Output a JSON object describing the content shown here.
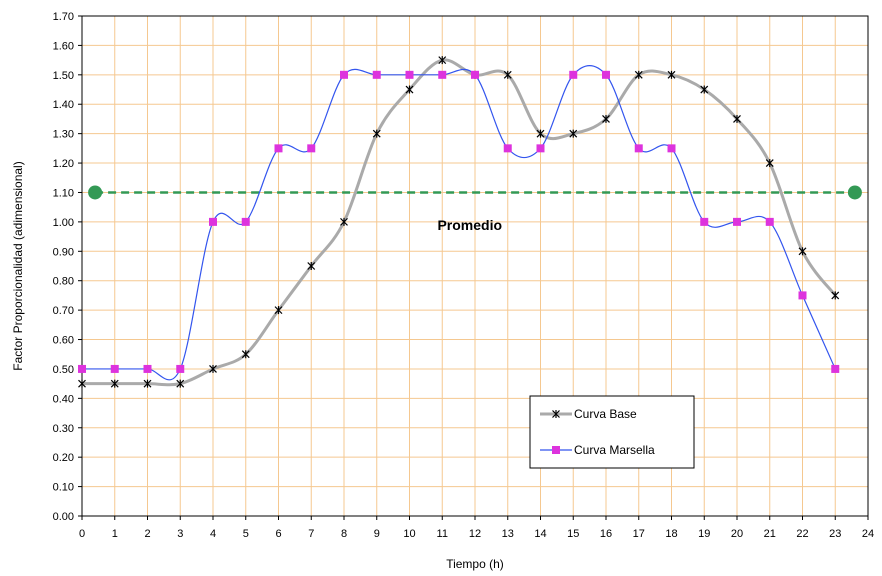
{
  "chart_data": {
    "type": "line",
    "xlabel": "Tiempo (h)",
    "ylabel": "Factor Proporcionalidad (adimensional)",
    "xlim": [
      0,
      24
    ],
    "ylim": [
      0,
      1.7
    ],
    "x_ticks": [
      "0",
      "1",
      "2",
      "3",
      "4",
      "5",
      "6",
      "7",
      "8",
      "9",
      "10",
      "11",
      "12",
      "13",
      "14",
      "15",
      "16",
      "17",
      "18",
      "19",
      "20",
      "21",
      "22",
      "23",
      "24"
    ],
    "y_ticks": [
      "0.00",
      "0.10",
      "0.20",
      "0.30",
      "0.40",
      "0.50",
      "0.60",
      "0.70",
      "0.80",
      "0.90",
      "1.00",
      "1.10",
      "1.20",
      "1.30",
      "1.40",
      "1.50",
      "1.60",
      "1.70"
    ],
    "grid": true,
    "legend_position": "lower-right",
    "series": [
      {
        "name": "Curva Base",
        "color": "#aaaaaa",
        "marker": "asterisk",
        "x": [
          0,
          1,
          2,
          3,
          4,
          5,
          6,
          7,
          8,
          9,
          10,
          11,
          12,
          13,
          14,
          15,
          16,
          17,
          18,
          19,
          20,
          21,
          22,
          23
        ],
        "values": [
          0.45,
          0.45,
          0.45,
          0.45,
          0.5,
          0.55,
          0.7,
          0.85,
          1.0,
          1.3,
          1.45,
          1.55,
          1.5,
          1.5,
          1.3,
          1.3,
          1.35,
          1.5,
          1.5,
          1.45,
          1.35,
          1.2,
          0.9,
          0.75
        ]
      },
      {
        "name": "Curva Marsella",
        "color": "#3355ee",
        "marker_color": "#dd33dd",
        "marker": "square",
        "x": [
          0,
          1,
          2,
          3,
          4,
          5,
          6,
          7,
          8,
          9,
          10,
          11,
          12,
          13,
          14,
          15,
          16,
          17,
          18,
          19,
          20,
          21,
          22,
          23
        ],
        "values": [
          0.5,
          0.5,
          0.5,
          0.5,
          1.0,
          1.0,
          1.25,
          1.25,
          1.5,
          1.5,
          1.5,
          1.5,
          1.5,
          1.25,
          1.25,
          1.5,
          1.5,
          1.25,
          1.25,
          1.0,
          1.0,
          1.0,
          0.75,
          0.5
        ]
      }
    ],
    "average_line": {
      "label": "Promedio",
      "value": 1.1,
      "x_start": 0.4,
      "x_end": 23.6,
      "color": "#339955",
      "label_x": 13,
      "label_y": 0.99
    },
    "colors": {
      "plot_background": "#ffffff",
      "grid": "#f5c890",
      "axis": "#000000"
    }
  }
}
